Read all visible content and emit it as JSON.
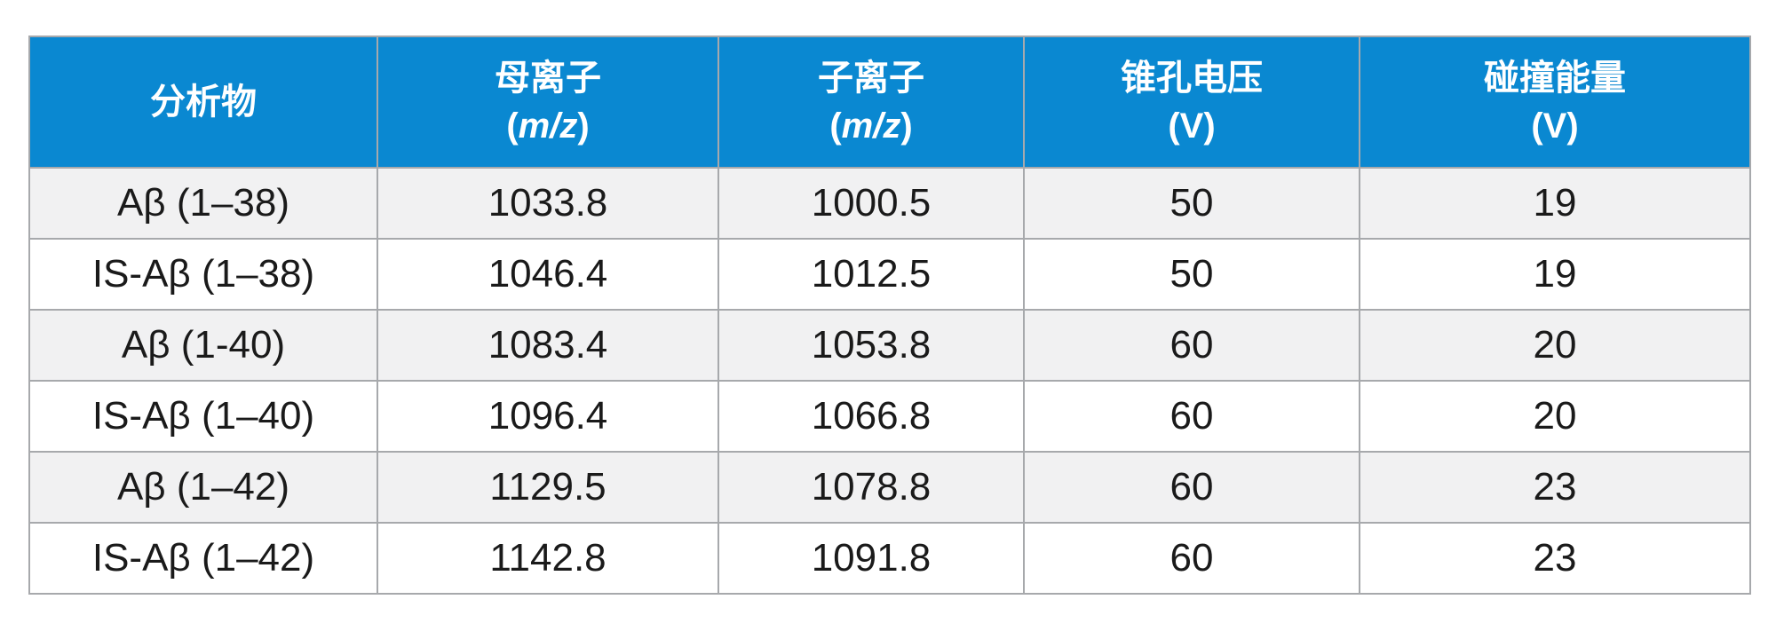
{
  "table": {
    "headers": [
      {
        "line1": "分析物",
        "line2": ""
      },
      {
        "line1": "母离子",
        "line2_prefix": "(",
        "line2_italic": "m/z",
        "line2_suffix": ")"
      },
      {
        "line1": "子离子",
        "line2_prefix": "(",
        "line2_italic": "m/z",
        "line2_suffix": ")"
      },
      {
        "line1": "锥孔电压",
        "line2": "(V)"
      },
      {
        "line1": "碰撞能量",
        "line2": "(V)"
      }
    ],
    "rows": [
      {
        "analyte": "Aβ (1–38)",
        "precursor": "1033.8",
        "product": "1000.5",
        "cone": "50",
        "collision": "19"
      },
      {
        "analyte": "IS-Aβ (1–38)",
        "precursor": "1046.4",
        "product": "1012.5",
        "cone": "50",
        "collision": "19"
      },
      {
        "analyte": "Aβ (1-40)",
        "precursor": "1083.4",
        "product": "1053.8",
        "cone": "60",
        "collision": "20"
      },
      {
        "analyte": "IS-Aβ (1–40)",
        "precursor": "1096.4",
        "product": "1066.8",
        "cone": "60",
        "collision": "20"
      },
      {
        "analyte": "Aβ (1–42)",
        "precursor": "1129.5",
        "product": "1078.8",
        "cone": "60",
        "collision": "23"
      },
      {
        "analyte": "IS-Aβ (1–42)",
        "precursor": "1142.8",
        "product": "1091.8",
        "cone": "60",
        "collision": "23"
      }
    ],
    "colors": {
      "header_bg": "#0a88d1",
      "header_text": "#ffffff",
      "row_alt_bg": "#f1f1f2",
      "border": "#a7a9ac"
    }
  }
}
